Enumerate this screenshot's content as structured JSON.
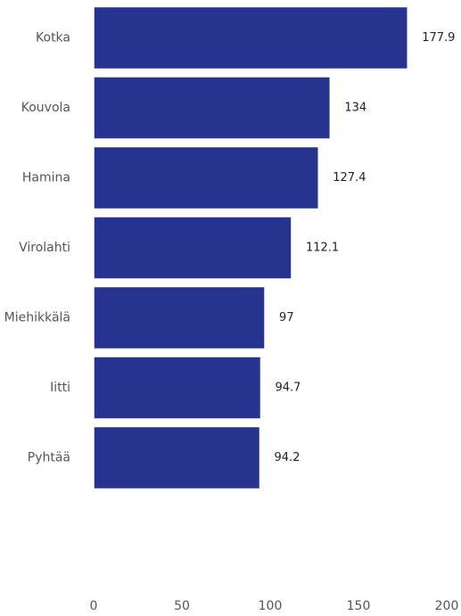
{
  "chart_data": {
    "type": "bar",
    "orientation": "horizontal",
    "categories": [
      "Kotka",
      "Kouvola",
      "Hamina",
      "Virolahti",
      "Miehikkälä",
      "Iitti",
      "Pyhtää"
    ],
    "values": [
      177.9,
      134,
      127.4,
      112.1,
      97,
      94.7,
      94.2
    ],
    "value_labels": [
      "177.9",
      "134",
      "127.4",
      "112.1",
      "97",
      "94.7",
      "94.2"
    ],
    "xlim": [
      0,
      200
    ],
    "xticks": [
      0,
      50,
      100,
      150,
      200
    ],
    "xtick_labels": [
      "0",
      "50",
      "100",
      "150",
      "200"
    ],
    "grid": false,
    "bar_color": "#26348f"
  }
}
